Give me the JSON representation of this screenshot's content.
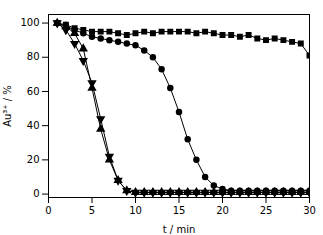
{
  "chart_data": {
    "type": "line",
    "xlabel": "t / min",
    "ylabel": "Au³⁺ / %",
    "x": [
      1,
      2,
      3,
      4,
      5,
      6,
      7,
      8,
      9,
      10,
      11,
      12,
      13,
      14,
      15,
      16,
      17,
      18,
      19,
      20,
      21,
      22,
      23,
      24,
      25,
      26,
      27,
      28,
      29,
      30
    ],
    "series": [
      {
        "color": "black",
        "marker": "square",
        "line_style": "solid",
        "values": [
          100,
          99,
          97,
          96,
          95,
          95,
          95,
          94,
          93,
          94,
          95,
          94,
          95,
          95,
          95,
          95,
          94,
          95,
          94,
          93,
          93,
          92,
          93,
          91,
          90,
          91,
          90,
          89,
          88,
          81
        ]
      },
      {
        "color": "black",
        "marker": "circle",
        "line_style": "solid",
        "values": [
          100,
          98,
          96,
          94,
          92,
          91,
          90,
          89,
          88,
          87,
          84,
          80,
          73,
          62,
          48,
          32,
          20,
          10,
          5,
          3,
          2,
          2,
          2,
          2,
          2,
          2,
          2,
          2,
          2,
          2
        ]
      },
      {
        "color": "black",
        "marker": "triangle-up",
        "line_style": "solid",
        "values": [
          100,
          98,
          94,
          85,
          62,
          38,
          20,
          8,
          2,
          1,
          1,
          1,
          1,
          1,
          1,
          1,
          1,
          1,
          1,
          1,
          1,
          1,
          1,
          1,
          1,
          1,
          1,
          1,
          1,
          1
        ]
      },
      {
        "color": "black",
        "marker": "triangle-down",
        "line_style": "solid",
        "values": [
          100,
          96,
          88,
          78,
          65,
          44,
          22,
          8,
          2,
          1,
          1,
          1,
          1,
          1,
          1,
          1,
          1,
          1,
          1,
          1,
          1,
          1,
          1,
          1,
          1,
          1,
          1,
          1,
          1,
          1
        ]
      }
    ],
    "xlim": [
      0,
      30
    ],
    "ylim": [
      -2,
      105
    ],
    "xticks": [
      0,
      5,
      10,
      15,
      20,
      25,
      30
    ],
    "yticks": [
      0,
      20,
      40,
      60,
      80,
      100
    ]
  }
}
